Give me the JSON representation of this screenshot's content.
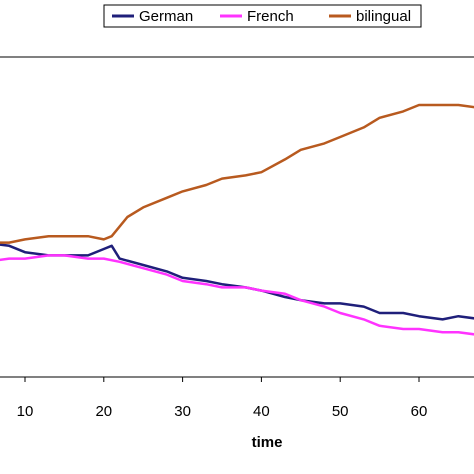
{
  "chart_data": {
    "type": "line",
    "title": "",
    "xlabel": "time",
    "ylabel": "",
    "xlim": [
      3,
      68
    ],
    "ylim": [
      0,
      1
    ],
    "xticks": [
      10,
      20,
      30,
      40,
      50,
      60
    ],
    "grid": false,
    "legend": "top-right",
    "series": [
      {
        "name": "German",
        "color": "#1f1f7a",
        "x": [
          3,
          5,
          8,
          10,
          13,
          15,
          18,
          20,
          21,
          22,
          25,
          28,
          30,
          33,
          35,
          38,
          40,
          43,
          45,
          48,
          50,
          53,
          55,
          58,
          60,
          63,
          65,
          68
        ],
        "y": [
          0.42,
          0.42,
          0.41,
          0.39,
          0.38,
          0.38,
          0.38,
          0.4,
          0.41,
          0.37,
          0.35,
          0.33,
          0.31,
          0.3,
          0.29,
          0.28,
          0.27,
          0.25,
          0.24,
          0.23,
          0.23,
          0.22,
          0.2,
          0.2,
          0.19,
          0.18,
          0.19,
          0.18
        ]
      },
      {
        "name": "French",
        "color": "#ff33ff",
        "x": [
          3,
          5,
          8,
          10,
          13,
          15,
          18,
          20,
          22,
          25,
          28,
          30,
          33,
          35,
          38,
          40,
          43,
          45,
          48,
          50,
          53,
          55,
          58,
          60,
          63,
          65,
          68
        ],
        "y": [
          0.37,
          0.36,
          0.37,
          0.37,
          0.38,
          0.38,
          0.37,
          0.37,
          0.36,
          0.34,
          0.32,
          0.3,
          0.29,
          0.28,
          0.28,
          0.27,
          0.26,
          0.24,
          0.22,
          0.2,
          0.18,
          0.16,
          0.15,
          0.15,
          0.14,
          0.14,
          0.13
        ]
      },
      {
        "name": "bilingual",
        "color": "#b85a1f",
        "x": [
          3,
          5,
          8,
          10,
          13,
          15,
          18,
          20,
          21,
          23,
          25,
          28,
          30,
          33,
          35,
          38,
          40,
          43,
          45,
          48,
          50,
          53,
          55,
          58,
          60,
          62,
          65,
          68
        ],
        "y": [
          0.41,
          0.42,
          0.42,
          0.43,
          0.44,
          0.44,
          0.44,
          0.43,
          0.44,
          0.5,
          0.53,
          0.56,
          0.58,
          0.6,
          0.62,
          0.63,
          0.64,
          0.68,
          0.71,
          0.73,
          0.75,
          0.78,
          0.81,
          0.83,
          0.85,
          0.85,
          0.85,
          0.84
        ]
      }
    ]
  }
}
